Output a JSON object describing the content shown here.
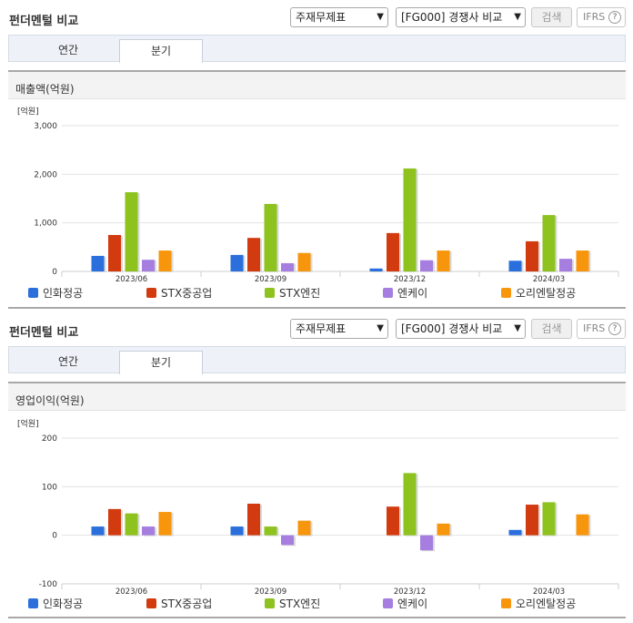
{
  "panels": [
    {
      "title": "펀더멘털 비교",
      "select1": "주재무제표",
      "select2": "[FG000] 경쟁사 비교",
      "search_label": "검색",
      "ifrs_label": "IFRS",
      "ifrs_help": "?",
      "tabs": [
        "연간",
        "분기"
      ],
      "active_tab": 1,
      "chart_title": "매출액(억원)",
      "unit_label": "[억원]"
    },
    {
      "title": "펀더멘털 비교",
      "select1": "주재무제표",
      "select2": "[FG000] 경쟁사 비교",
      "search_label": "검색",
      "ifrs_label": "IFRS",
      "ifrs_help": "?",
      "tabs": [
        "연간",
        "분기"
      ],
      "active_tab": 1,
      "chart_title": "영업이익(억원)",
      "unit_label": "[억원]"
    }
  ],
  "chart_data": [
    {
      "type": "bar",
      "title": "매출액(억원)",
      "ylabel": "[억원]",
      "categories": [
        "2023/06",
        "2023/09",
        "2023/12",
        "2024/03"
      ],
      "ylim": [
        0,
        3000
      ],
      "yticks": [
        0,
        1000,
        2000,
        3000
      ],
      "ytick_labels": [
        "0",
        "1,000",
        "2,000",
        "3,000"
      ],
      "grid": true,
      "legend_position": "bottom",
      "series": [
        {
          "name": "인화정공",
          "color": "#2b6fdc",
          "values": [
            320,
            340,
            60,
            220
          ]
        },
        {
          "name": "STX중공업",
          "color": "#d23a0f",
          "values": [
            750,
            690,
            790,
            620
          ]
        },
        {
          "name": "STX엔진",
          "color": "#8dc21f",
          "values": [
            1630,
            1390,
            2120,
            1160
          ]
        },
        {
          "name": "엔케이",
          "color": "#a57ee0",
          "values": [
            240,
            170,
            230,
            260
          ]
        },
        {
          "name": "오리엔탈정공",
          "color": "#f7960d",
          "values": [
            430,
            380,
            430,
            430
          ]
        }
      ]
    },
    {
      "type": "bar",
      "title": "영업이익(억원)",
      "ylabel": "[억원]",
      "categories": [
        "2023/06",
        "2023/09",
        "2023/12",
        "2024/03"
      ],
      "ylim": [
        -100,
        200
      ],
      "yticks": [
        -100,
        0,
        100,
        200
      ],
      "ytick_labels": [
        "-100",
        "0",
        "100",
        "200"
      ],
      "grid": true,
      "legend_position": "bottom",
      "series": [
        {
          "name": "인화정공",
          "color": "#2b6fdc",
          "values": [
            18,
            18,
            0,
            11
          ]
        },
        {
          "name": "STX중공업",
          "color": "#d23a0f",
          "values": [
            54,
            65,
            59,
            63
          ]
        },
        {
          "name": "STX엔진",
          "color": "#8dc21f",
          "values": [
            45,
            18,
            128,
            68
          ]
        },
        {
          "name": "엔케이",
          "color": "#a57ee0",
          "values": [
            18,
            -20,
            -31,
            0
          ]
        },
        {
          "name": "오리엔탈정공",
          "color": "#f7960d",
          "values": [
            48,
            30,
            24,
            43
          ]
        }
      ]
    }
  ]
}
